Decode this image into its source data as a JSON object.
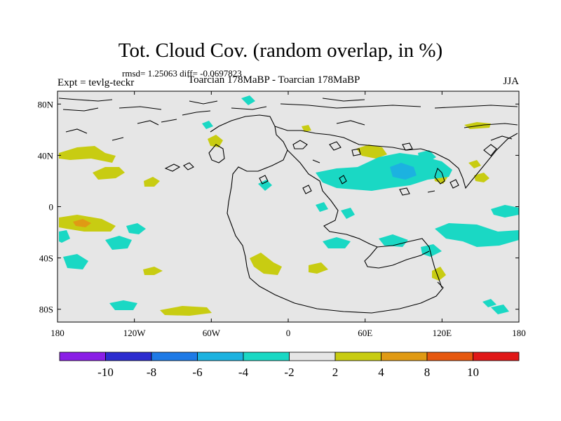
{
  "header": {
    "title": "Tot. Cloud Cov. (random overlap, in %)",
    "stats": "rmsd= 1.25063 diff= -0.0697823",
    "experiment": "Expt = tevlg-teckr",
    "comparison": "Toarcian 178MaBP - Toarcian 178MaBP",
    "season": "JJA"
  },
  "axes": {
    "x_ticks": [
      {
        "lon": -180,
        "label": "180"
      },
      {
        "lon": -120,
        "label": "120W"
      },
      {
        "lon": -60,
        "label": "60W"
      },
      {
        "lon": 0,
        "label": "0"
      },
      {
        "lon": 60,
        "label": "60E"
      },
      {
        "lon": 120,
        "label": "120E"
      },
      {
        "lon": 180,
        "label": "180"
      }
    ],
    "y_ticks": [
      {
        "lat": 80,
        "label": "80N"
      },
      {
        "lat": 40,
        "label": "40N"
      },
      {
        "lat": 0,
        "label": "0"
      },
      {
        "lat": -40,
        "label": "40S"
      },
      {
        "lat": -80,
        "label": "80S"
      }
    ],
    "lon_range": [
      -180,
      180
    ],
    "lat_range": [
      -90,
      90
    ]
  },
  "colorbar": {
    "bins": [
      {
        "color": "#8a1ee6"
      },
      {
        "color": "#2c2ccf"
      },
      {
        "color": "#1e7ae6"
      },
      {
        "color": "#1cb2e0"
      },
      {
        "color": "#1ad8c4"
      },
      {
        "color": "#e6e6e6"
      },
      {
        "color": "#c8cc12"
      },
      {
        "color": "#e09a14"
      },
      {
        "color": "#e6580f"
      },
      {
        "color": "#e01818"
      }
    ],
    "labels": [
      "-10",
      "-8",
      "-6",
      "-4",
      "-2",
      "2",
      "4",
      "8",
      "10"
    ]
  },
  "colors": {
    "background_field": "#e6e6e6",
    "positive_small": "#c8cc12",
    "positive_medium": "#e09a14",
    "negative_small": "#1ad8c4",
    "negative_medium": "#1cb2e0",
    "coastline": "#000000"
  }
}
